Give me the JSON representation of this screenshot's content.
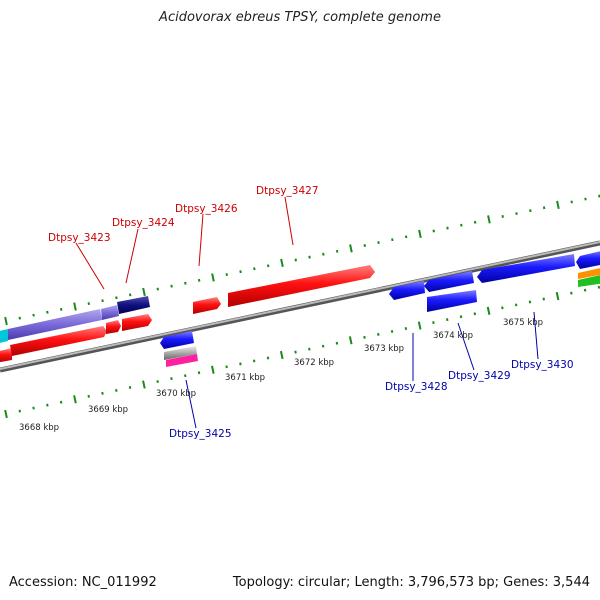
{
  "title": "Acidovorax ebreus TPSY, complete genome",
  "footer": {
    "accession": "Accession: NC_011992",
    "summary": "Topology: circular; Length: 3,796,573 bp; Genes: 3,544"
  },
  "colors": {
    "forward_gene": "#ff1010",
    "reverse_gene": "#1a1aff",
    "forward_label": "#cc0000",
    "reverse_label": "#0000aa",
    "tick": "#1a8a1a",
    "backbone": "#888888"
  },
  "kbp_labels": [
    "3668 kbp",
    "3669 kbp",
    "3670 kbp",
    "3671 kbp",
    "3672 kbp",
    "3673 kbp",
    "3674 kbp",
    "3675 kbp"
  ],
  "genes_forward": [
    "Dtpsy_3423",
    "Dtpsy_3424",
    "Dtpsy_3426",
    "Dtpsy_3427"
  ],
  "genes_reverse": [
    "Dtpsy_3425",
    "Dtpsy_3428",
    "Dtpsy_3429",
    "Dtpsy_3430"
  ]
}
